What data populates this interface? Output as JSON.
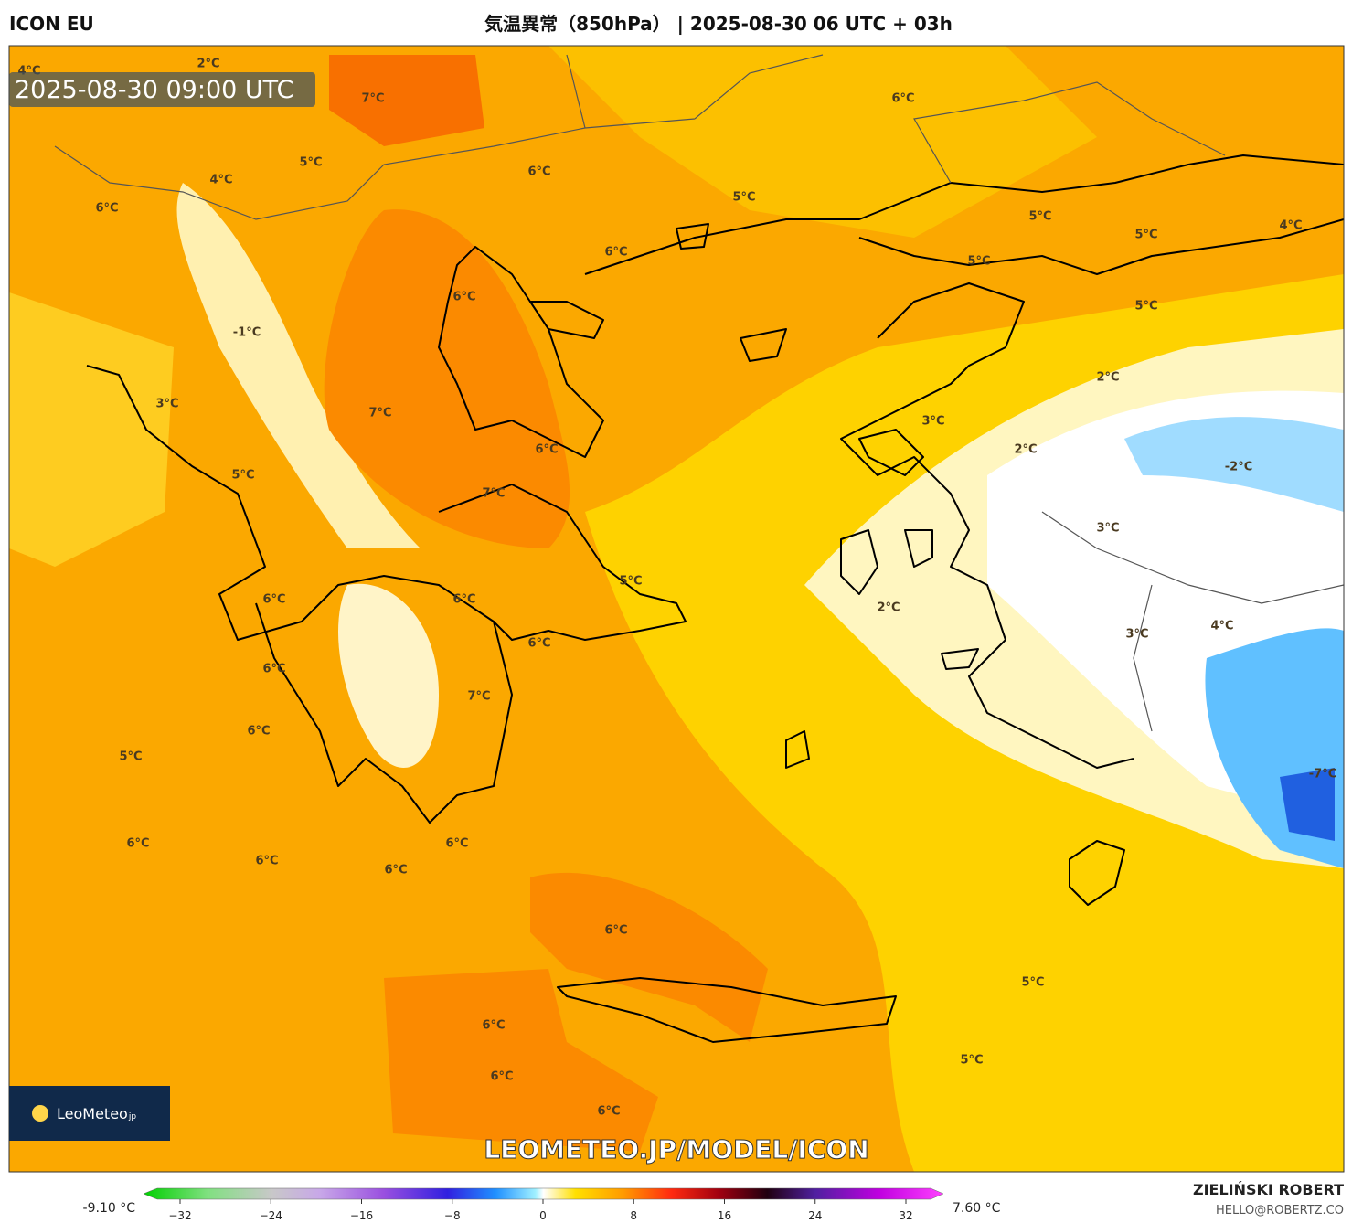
{
  "header": {
    "model": "ICON EU",
    "title": "気温異常（850hPa） | 2025-08-30 06 UTC + 03h"
  },
  "timestamp": "2025-08-30 09:00 UTC",
  "labels": [
    "4°C",
    "2°C",
    "7°C",
    "5°C",
    "4°C",
    "6°C",
    "6°C",
    "6°C",
    "5°C",
    "5°C",
    "5°C",
    "4°C",
    "6°C",
    "5°C",
    "6°C",
    "5°C",
    "-1°C",
    "2°C",
    "3°C",
    "7°C",
    "3°C",
    "6°C",
    "2°C",
    "-2°C",
    "5°C",
    "7°C",
    "3°C",
    "5°C",
    "6°C",
    "6°C",
    "2°C",
    "4°C",
    "3°C",
    "6°C",
    "6°C",
    "7°C",
    "6°C",
    "5°C",
    "-7°C",
    "6°C",
    "6°C",
    "6°C",
    "6°C",
    "6°C",
    "5°C",
    "6°C",
    "5°C",
    "6°C",
    "6°C"
  ],
  "watermark": "LEOMETEO.JP/MODEL/ICON",
  "logo": {
    "name": "LeoMeteo",
    "suffix": "jp"
  },
  "colorbar": {
    "min_label": "-9.10 °C",
    "max_label": "7.60 °C",
    "ticks": [
      {
        "value": -32,
        "label": "−32"
      },
      {
        "value": -24,
        "label": "−24"
      },
      {
        "value": -16,
        "label": "−16"
      },
      {
        "value": -8,
        "label": "−8"
      },
      0,
      8,
      16,
      24,
      32
    ]
  },
  "credit": {
    "name": "ZIELIŃSKI ROBERT",
    "email": "HELLO@ROBERTZ.CO"
  }
}
